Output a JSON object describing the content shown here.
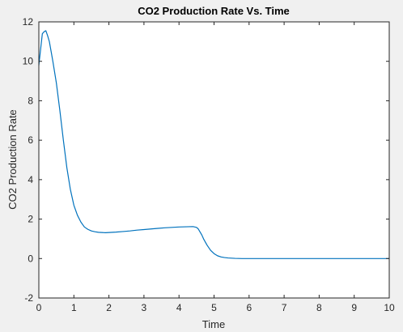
{
  "chart_data": {
    "type": "line",
    "title": "CO2 Production Rate Vs. Time",
    "xlabel": "Time",
    "ylabel": "CO2 Production Rate",
    "xlim": [
      0,
      10
    ],
    "ylim": [
      -2,
      12
    ],
    "xticks": [
      0,
      1,
      2,
      3,
      4,
      5,
      6,
      7,
      8,
      9,
      10
    ],
    "yticks": [
      -2,
      0,
      2,
      4,
      6,
      8,
      10,
      12
    ],
    "grid": false,
    "legend": "none",
    "series": [
      {
        "color": "#0072bd",
        "x": [
          0,
          0.05,
          0.1,
          0.15,
          0.2,
          0.25,
          0.3,
          0.35,
          0.4,
          0.5,
          0.6,
          0.7,
          0.8,
          0.9,
          1.0,
          1.1,
          1.2,
          1.3,
          1.4,
          1.5,
          1.6,
          1.7,
          1.8,
          1.9,
          2.0,
          2.2,
          2.4,
          2.6,
          2.8,
          3.0,
          3.2,
          3.4,
          3.6,
          3.8,
          4.0,
          4.2,
          4.4,
          4.5,
          4.55,
          4.6,
          4.65,
          4.7,
          4.8,
          4.9,
          5.0,
          5.1,
          5.2,
          5.3,
          5.4,
          5.6,
          5.8,
          6.0,
          6.5,
          7.0,
          8.0,
          9.0,
          10.0
        ],
        "y": [
          9.8,
          10.6,
          11.4,
          11.5,
          11.55,
          11.3,
          11.0,
          10.5,
          10.0,
          8.9,
          7.5,
          6.0,
          4.6,
          3.5,
          2.7,
          2.2,
          1.85,
          1.6,
          1.48,
          1.4,
          1.36,
          1.33,
          1.32,
          1.31,
          1.32,
          1.34,
          1.37,
          1.4,
          1.44,
          1.47,
          1.5,
          1.53,
          1.56,
          1.58,
          1.6,
          1.61,
          1.62,
          1.58,
          1.5,
          1.35,
          1.2,
          1.0,
          0.68,
          0.42,
          0.25,
          0.14,
          0.08,
          0.05,
          0.03,
          0.01,
          0.0,
          0.0,
          0.0,
          0.0,
          0.0,
          0.0,
          0.0
        ]
      }
    ]
  }
}
